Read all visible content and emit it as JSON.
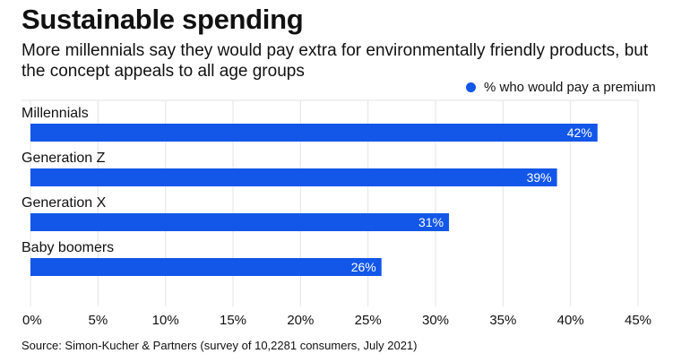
{
  "header": {
    "title": "Sustainable spending",
    "subtitle": "More millennials say they would pay extra for environmentally friendly products, but the concept appeals to all age groups"
  },
  "legend": {
    "label": "% who would pay a premium"
  },
  "footer": {
    "source": "Source: Simon-Kucher & Partners (survey of 10,2281 consumers, July 2021)"
  },
  "colors": {
    "bar": "#1357e8",
    "grid": "#e3e3e3",
    "label_on_bar": "#ffffff"
  },
  "chart_data": {
    "type": "bar",
    "orientation": "horizontal",
    "title": "Sustainable spending",
    "subtitle": "More millennials say they would pay extra for environmentally friendly products, but the concept appeals to all age groups",
    "categories": [
      "Millennials",
      "Generation Z",
      "Generation X",
      "Baby boomers"
    ],
    "series": [
      {
        "name": "% who would pay a premium",
        "values": [
          42,
          39,
          31,
          26
        ],
        "data_labels": [
          "42%",
          "39%",
          "31%",
          "26%"
        ]
      }
    ],
    "xlim": [
      0,
      45
    ],
    "xticks": [
      0,
      5,
      10,
      15,
      20,
      25,
      30,
      35,
      40,
      45
    ],
    "xtick_labels": [
      "0%",
      "5%",
      "10%",
      "15%",
      "20%",
      "25%",
      "30%",
      "35%",
      "40%",
      "45%"
    ],
    "grid": "vertical",
    "legend_position": "top-right",
    "source": "Source: Simon-Kucher & Partners (survey of 10,2281 consumers, July 2021)"
  }
}
